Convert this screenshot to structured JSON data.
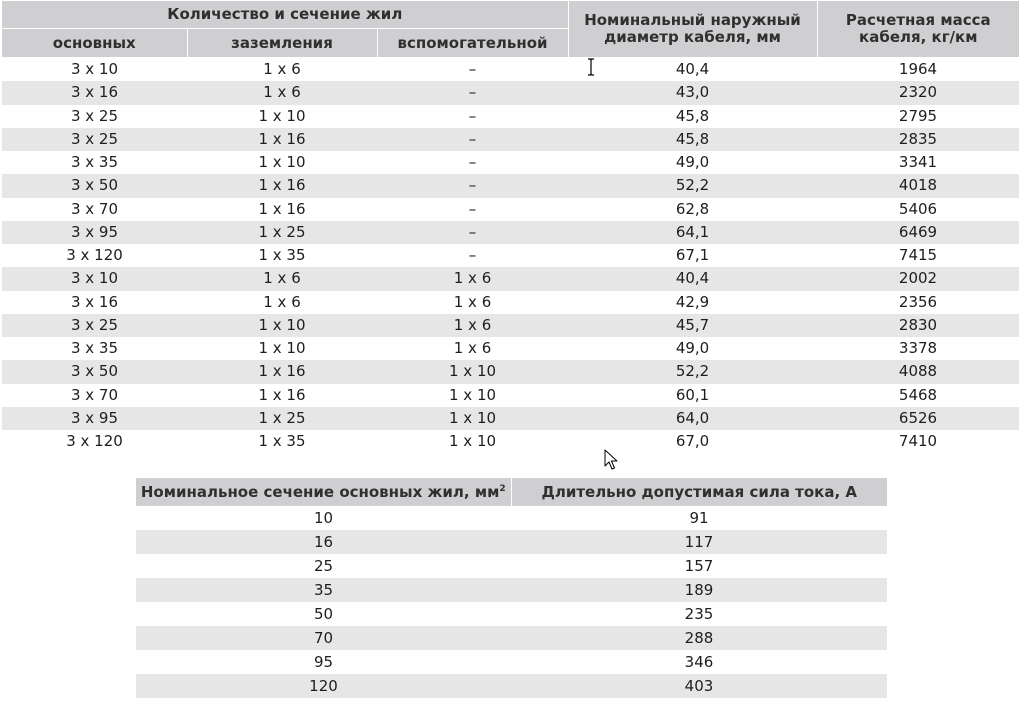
{
  "table1": {
    "group_header": "Количество и сечение жил",
    "sub_headers": [
      "основных",
      "заземления",
      "вспомогательной"
    ],
    "col_diameter_line1": "Номинальный наружный",
    "col_diameter_line2": "диаметр кабеля, мм",
    "col_mass_line1": "Расчетная масса",
    "col_mass_line2": "кабеля, кг/км",
    "rows": [
      [
        "3 x 10",
        "1 x 6",
        "–",
        "40,4",
        "1964"
      ],
      [
        "3 x 16",
        "1 x 6",
        "–",
        "43,0",
        "2320"
      ],
      [
        "3 x 25",
        "1 x 10",
        "–",
        "45,8",
        "2795"
      ],
      [
        "3 x 25",
        "1 x 16",
        "–",
        "45,8",
        "2835"
      ],
      [
        "3 x 35",
        "1 x 10",
        "–",
        "49,0",
        "3341"
      ],
      [
        "3 x 50",
        "1 x 16",
        "–",
        "52,2",
        "4018"
      ],
      [
        "3 x 70",
        "1 x 16",
        "–",
        "62,8",
        "5406"
      ],
      [
        "3 x 95",
        "1 x 25",
        "–",
        "64,1",
        "6469"
      ],
      [
        "3 x 120",
        "1 x 35",
        "–",
        "67,1",
        "7415"
      ],
      [
        "3 x 10",
        "1 x 6",
        "1 x 6",
        "40,4",
        "2002"
      ],
      [
        "3 x 16",
        "1 x 6",
        "1 x 6",
        "42,9",
        "2356"
      ],
      [
        "3 x 25",
        "1 x 10",
        "1 x 6",
        "45,7",
        "2830"
      ],
      [
        "3 x 35",
        "1 x 10",
        "1 x 6",
        "49,0",
        "3378"
      ],
      [
        "3 x 50",
        "1 x 16",
        "1 x 10",
        "52,2",
        "4088"
      ],
      [
        "3 x 70",
        "1 x 16",
        "1 x 10",
        "60,1",
        "5468"
      ],
      [
        "3 x 95",
        "1 x 25",
        "1 x 10",
        "64,0",
        "6526"
      ],
      [
        "3 x 120",
        "1 x 35",
        "1 x 10",
        "67,0",
        "7410"
      ]
    ]
  },
  "table2": {
    "col_section": "Номинальное сечение основных жил, мм",
    "col_section_sup": "2",
    "col_current": "Длительно допустимая сила тока, А",
    "rows": [
      [
        "10",
        "91"
      ],
      [
        "16",
        "117"
      ],
      [
        "25",
        "157"
      ],
      [
        "35",
        "189"
      ],
      [
        "50",
        "235"
      ],
      [
        "70",
        "288"
      ],
      [
        "95",
        "346"
      ],
      [
        "120",
        "403"
      ]
    ]
  },
  "cursors": [
    "text-cursor-icon",
    "arrow-cursor-icon"
  ]
}
